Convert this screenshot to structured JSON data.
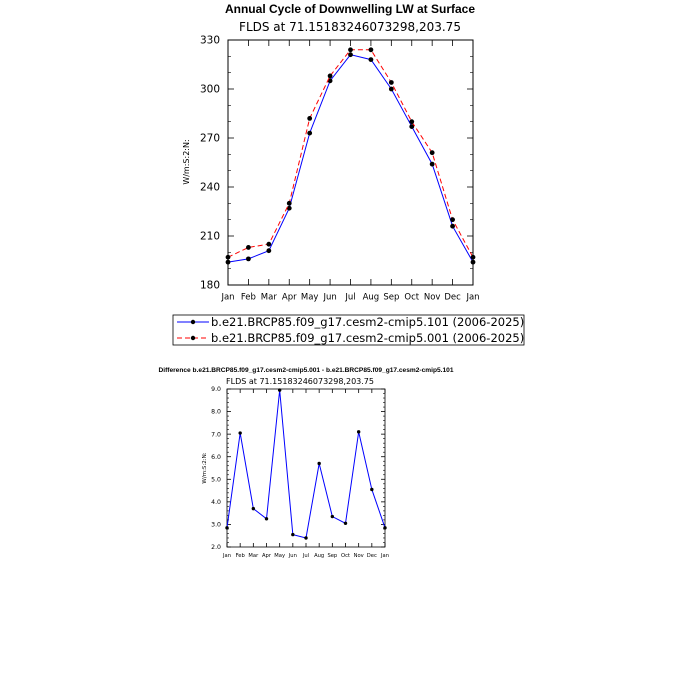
{
  "chart_data": [
    {
      "type": "line",
      "title": "Annual Cycle of Downwelling LW at Surface",
      "subtitle": "FLDS at 71.15183246073298,203.75",
      "ylabel": "W/m:S:2:N:",
      "ylim": [
        180,
        330
      ],
      "yticks": [
        "180",
        "210",
        "240",
        "270",
        "300",
        "330"
      ],
      "categories": [
        "Jan",
        "Feb",
        "Mar",
        "Apr",
        "May",
        "Jun",
        "Jul",
        "Aug",
        "Sep",
        "Oct",
        "Nov",
        "Dec",
        "Jan"
      ],
      "series": [
        {
          "name": "b.e21.BRCP85.f09_g17.cesm2-cmip5.101 (2006-2025)",
          "color": "#0000ff",
          "dash": "solid",
          "values": [
            194,
            196,
            201,
            227,
            273,
            305,
            321,
            318,
            300,
            277,
            254,
            216,
            194
          ]
        },
        {
          "name": "b.e21.BRCP85.f09_g17.cesm2-cmip5.001 (2006-2025)",
          "color": "#ff0000",
          "dash": "dashed",
          "values": [
            197,
            203,
            205,
            230,
            282,
            308,
            324,
            324,
            304,
            280,
            261,
            220,
            197
          ]
        }
      ],
      "grid": false,
      "legend": "bottom"
    },
    {
      "type": "line",
      "title": "Difference b.e21.BRCP85.f09_g17.cesm2-cmip5.001 - b.e21.BRCP85.f09_g17.cesm2-cmip5.101",
      "subtitle": "FLDS at 71.15183246073298,203.75",
      "ylabel": "W/m:S:2:N:",
      "ylim": [
        2.0,
        9.0
      ],
      "yticks": [
        "2.0",
        "3.0",
        "4.0",
        "5.0",
        "6.0",
        "7.0",
        "8.0",
        "9.0"
      ],
      "categories": [
        "Jan",
        "Feb",
        "Mar",
        "Apr",
        "May",
        "Jun",
        "Jul",
        "Aug",
        "Sep",
        "Oct",
        "Nov",
        "Dec",
        "Jan"
      ],
      "series": [
        {
          "color": "#0000ff",
          "values": [
            2.85,
            7.05,
            3.7,
            3.25,
            8.95,
            2.55,
            2.4,
            5.7,
            3.35,
            3.05,
            7.1,
            4.55,
            2.85
          ]
        }
      ],
      "grid": false
    }
  ]
}
